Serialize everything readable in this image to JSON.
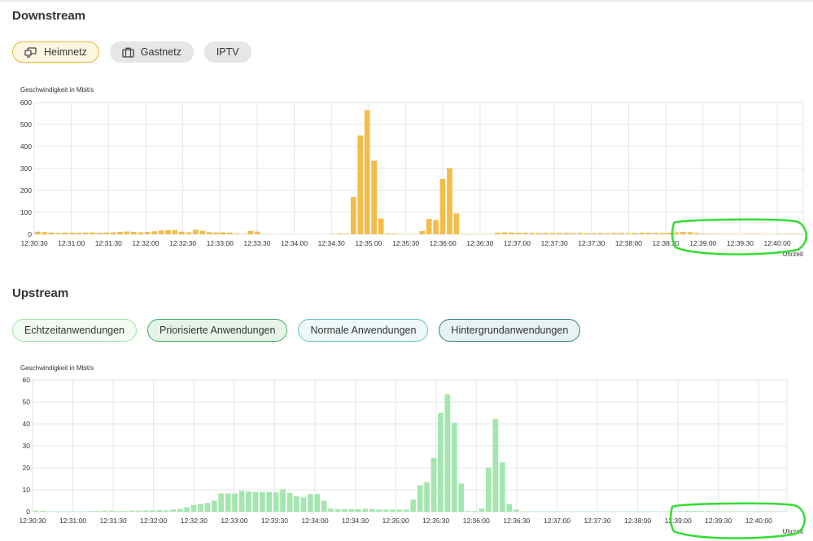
{
  "downstream": {
    "title": "Downstream",
    "tabs": [
      {
        "label": "Heimnetz",
        "icon": "monitor-icon",
        "active": true
      },
      {
        "label": "Gastnetz",
        "icon": "suitcase-icon",
        "active": false
      },
      {
        "label": "IPTV",
        "icon": "",
        "active": false
      }
    ]
  },
  "upstream": {
    "title": "Upstream",
    "tabs": [
      {
        "label": "Echtzeitanwendungen"
      },
      {
        "label": "Priorisierte Anwendungen"
      },
      {
        "label": "Normale Anwendungen"
      },
      {
        "label": "Hintergrundanwendungen"
      }
    ]
  },
  "colors": {
    "downstream_bar": "#f4bd4a",
    "upstream_bar": "#a4e6ae",
    "grid": "#e5e5e5",
    "annotation": "#33dd33",
    "tab_active_border": "#f0b532"
  },
  "chart_data": [
    {
      "type": "bar",
      "ylabel": "Geschwindigkeit in Mbit/s",
      "xlabel": "Uhrzeit",
      "ylim": [
        0,
        600
      ],
      "yticks": [
        "0",
        "100",
        "200",
        "300",
        "400",
        "500",
        "600"
      ],
      "xticks": [
        "12:30:30",
        "12:31:00",
        "12:31:30",
        "12:32:00",
        "12:32:30",
        "12:33:00",
        "12:33:30",
        "12:34:00",
        "12:34:30",
        "12:35:00",
        "12:35:30",
        "12:36:00",
        "12:36:30",
        "12:37:00",
        "12:37:30",
        "12:37:30",
        "12:38:00",
        "12:38:30",
        "12:39:00",
        "12:39:30",
        "12:40:00"
      ],
      "values": [
        12,
        10,
        8,
        6,
        8,
        7,
        7,
        8,
        8,
        7,
        8,
        9,
        11,
        13,
        11,
        9,
        11,
        14,
        17,
        19,
        19,
        12,
        9,
        21,
        16,
        10,
        8,
        9,
        8,
        3,
        2,
        16,
        12,
        1,
        1,
        0,
        1,
        0,
        0,
        0,
        0,
        0,
        0,
        2,
        4,
        3,
        170,
        450,
        565,
        335,
        72,
        4,
        3,
        1,
        1,
        1,
        15,
        70,
        65,
        252,
        300,
        95,
        2,
        1,
        1,
        1,
        1,
        7,
        9,
        8,
        7,
        7,
        6,
        6,
        6,
        6,
        6,
        6,
        5,
        6,
        5,
        5,
        6,
        5,
        6,
        6,
        5,
        6,
        7,
        7,
        6,
        6,
        7,
        9,
        11,
        10,
        6,
        3,
        2,
        2,
        2,
        2,
        1,
        2,
        2,
        2,
        1,
        1,
        2,
        2,
        2,
        2
      ]
    },
    {
      "type": "bar",
      "ylabel": "Geschwindigkeit in Mbit/s",
      "xlabel": "Uhrzeit",
      "ylim": [
        0,
        60
      ],
      "yticks": [
        "0",
        "10",
        "20",
        "30",
        "40",
        "50",
        "60"
      ],
      "xticks": [
        "12:30:30",
        "12:31:00",
        "12:31:30",
        "12:32:00",
        "12:32:30",
        "12:33:00",
        "12:33:30",
        "12:34:00",
        "12:34:30",
        "12:35:00",
        "12:35:30",
        "12:36:00",
        "12:36:30",
        "12:37:00",
        "12:37:30",
        "12:38:00",
        "12:39:00",
        "12:39:30",
        "12:40:00"
      ],
      "values": [
        0.5,
        0.4,
        0.2,
        0.2,
        0.2,
        0.2,
        0.2,
        0.2,
        0.3,
        0.3,
        0.5,
        0.5,
        0.3,
        0.3,
        0.5,
        0.5,
        0.6,
        0.6,
        0.7,
        0.6,
        1,
        1.2,
        2,
        3,
        3.5,
        4,
        5,
        8.3,
        8.3,
        8.3,
        9.5,
        9.2,
        9,
        9,
        9,
        8.8,
        10.2,
        8.5,
        7,
        6.5,
        8,
        8.1,
        5,
        1.5,
        1.2,
        1.2,
        1.2,
        1.2,
        1.3,
        1.2,
        1,
        1,
        1,
        1,
        1,
        5.5,
        12,
        13.5,
        24.5,
        45,
        53.5,
        40.5,
        12.8,
        0.3,
        0.3,
        1.5,
        20,
        42.3,
        22.5,
        3.5,
        1,
        0.2,
        0.2,
        0.2,
        0.2,
        0.2,
        0.2,
        0.2,
        0.2,
        0.2,
        0.2,
        0.2,
        0.2,
        0.2,
        0.2,
        0.2,
        0.2,
        0.2,
        0.2,
        0.2,
        0.2,
        0.2,
        0.2,
        0.2,
        0.3,
        0.4,
        0.4,
        0.3,
        0.3,
        0.2,
        0.2,
        0.2,
        0.2,
        0.2,
        0.2,
        0.2,
        0.2,
        0.2,
        0.2,
        0.2
      ]
    }
  ]
}
